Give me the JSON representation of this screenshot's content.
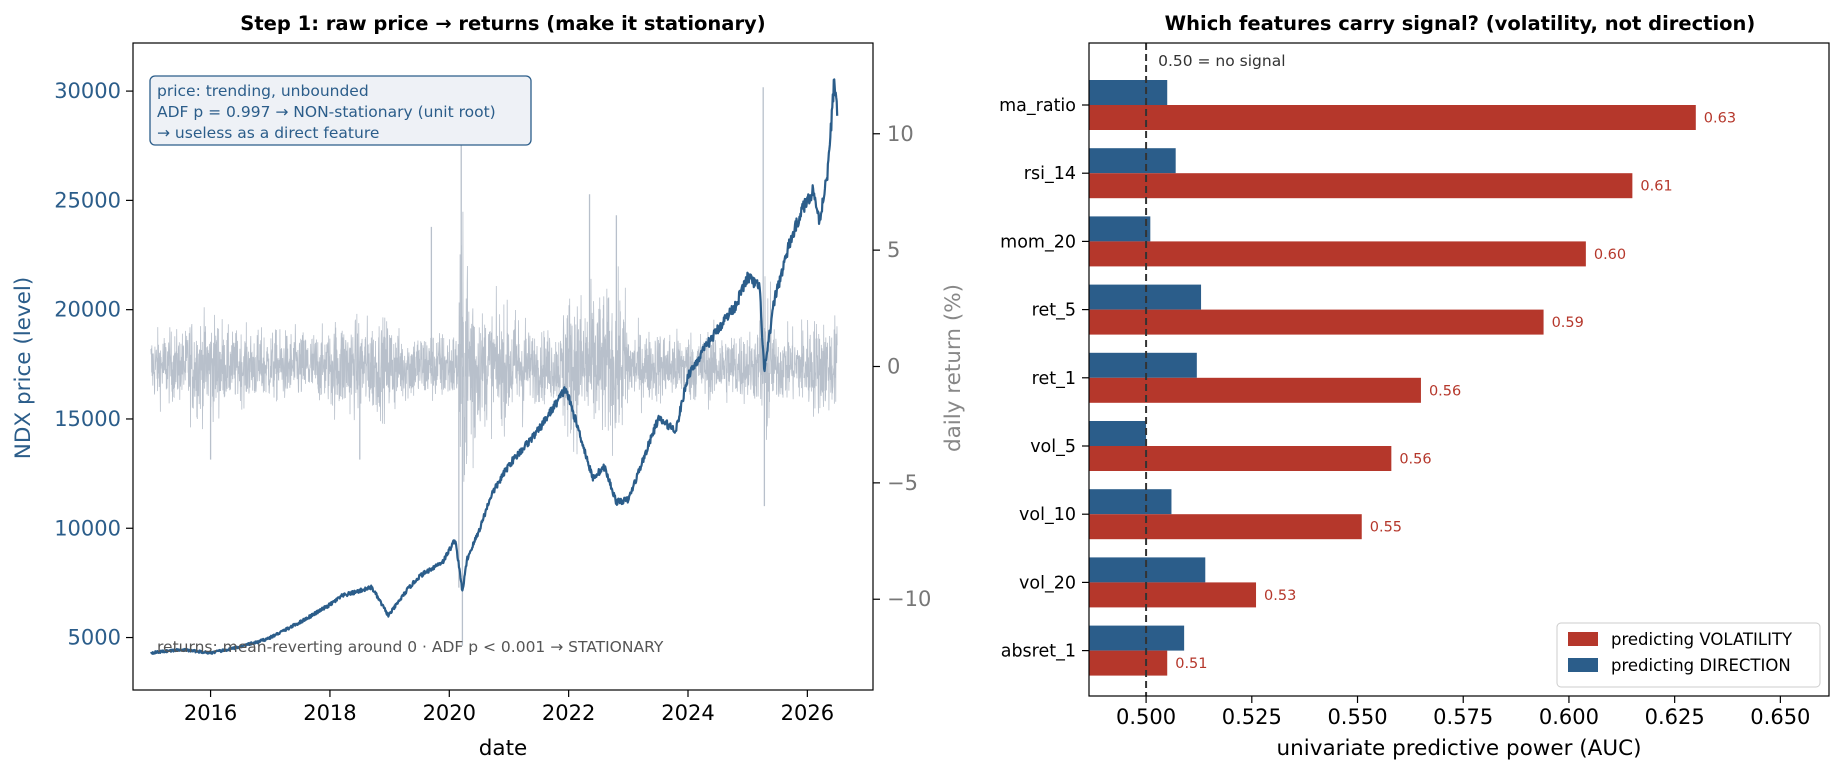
{
  "chart_data": [
    {
      "type": "line",
      "title": "Step 1: raw price → returns (make it stationary)",
      "xlabel": "date",
      "ylabel_left": "NDX price (level)",
      "ylabel_right": "daily return (%)",
      "xlim": [
        2014.7,
        2027.1
      ],
      "ylim_left": [
        2600,
        32200
      ],
      "ylim_right": [
        -13.9,
        13.9
      ],
      "x_ticks": [
        2016,
        2018,
        2020,
        2022,
        2024,
        2026
      ],
      "y_ticks_left": [
        5000,
        10000,
        15000,
        20000,
        25000,
        30000
      ],
      "y_ticks_right": [
        -10,
        -5,
        0,
        5,
        10
      ],
      "colors": {
        "price": "#2b5d8a",
        "returns": "#b8c0cb"
      },
      "annotation_box": [
        "price: trending, unbounded",
        "ADF p = 0.997 → NON-stationary (unit root)",
        "→ useless as a direct feature"
      ],
      "annotation_bottom": "returns: mean-reverting around 0 · ADF p < 0.001 → STATIONARY",
      "series": [
        {
          "name": "price",
          "x": [
            2015.0,
            2015.5,
            2016.0,
            2016.3,
            2016.8,
            2017.0,
            2017.5,
            2018.0,
            2018.2,
            2018.7,
            2018.98,
            2019.3,
            2019.5,
            2019.9,
            2020.1,
            2020.22,
            2020.3,
            2020.5,
            2020.7,
            2021.0,
            2021.5,
            2021.95,
            2022.2,
            2022.4,
            2022.6,
            2022.8,
            2023.0,
            2023.5,
            2023.8,
            2024.0,
            2024.3,
            2024.6,
            2024.8,
            2025.0,
            2025.2,
            2025.28,
            2025.45,
            2025.7,
            2025.9,
            2026.1,
            2026.2,
            2026.35,
            2026.45,
            2026.5
          ],
          "y": [
            4300,
            4450,
            4300,
            4450,
            4800,
            5000,
            5700,
            6500,
            6900,
            7300,
            6000,
            7200,
            7800,
            8500,
            9500,
            7100,
            8600,
            9900,
            11500,
            12900,
            14500,
            16400,
            14200,
            12300,
            12800,
            11200,
            11300,
            15000,
            14500,
            17000,
            18300,
            19500,
            20200,
            21500,
            21000,
            17100,
            20500,
            23000,
            24500,
            25500,
            24000,
            26500,
            30500,
            29200
          ]
        },
        {
          "name": "returns",
          "approximate_daily_range": [
            -12.0,
            12.0
          ],
          "spikes": [
            {
              "x": 2020.2,
              "y": 12.0
            },
            {
              "x": 2020.22,
              "y": -12.0
            },
            {
              "x": 2020.16,
              "y": -9.5
            },
            {
              "x": 2025.26,
              "y": 12.0
            },
            {
              "x": 2025.28,
              "y": -6.0
            },
            {
              "x": 2022.35,
              "y": 7.4
            },
            {
              "x": 2022.8,
              "y": 6.5
            },
            {
              "x": 2016.0,
              "y": -4.0
            },
            {
              "x": 2018.5,
              "y": -4.0
            },
            {
              "x": 2019.7,
              "y": 6.0
            }
          ]
        }
      ]
    },
    {
      "type": "bar",
      "orientation": "horizontal",
      "title": "Which features carry signal? (volatility, not direction)",
      "xlabel": "univariate predictive power (AUC)",
      "xlim": [
        0.4865,
        0.6615
      ],
      "x_ticks": [
        "0.500",
        "0.525",
        "0.550",
        "0.575",
        "0.600",
        "0.625",
        "0.650"
      ],
      "reference_line": {
        "x": 0.5,
        "label": "0.50 = no signal"
      },
      "categories": [
        "ma_ratio",
        "rsi_14",
        "mom_20",
        "ret_5",
        "ret_1",
        "vol_5",
        "vol_10",
        "vol_20",
        "absret_1"
      ],
      "series": [
        {
          "name": "predicting VOLATILITY",
          "color": "#b5372b",
          "values": [
            0.63,
            0.615,
            0.604,
            0.594,
            0.565,
            0.558,
            0.551,
            0.526,
            0.505
          ],
          "labels": [
            "0.63",
            "0.61",
            "0.60",
            "0.59",
            "0.56",
            "0.56",
            "0.55",
            "0.53",
            "0.51"
          ]
        },
        {
          "name": "predicting DIRECTION",
          "color": "#2b5d8a",
          "values": [
            0.505,
            0.507,
            0.501,
            0.513,
            0.512,
            0.5,
            0.506,
            0.514,
            0.509
          ]
        }
      ],
      "legend_position": "lower-right"
    }
  ]
}
